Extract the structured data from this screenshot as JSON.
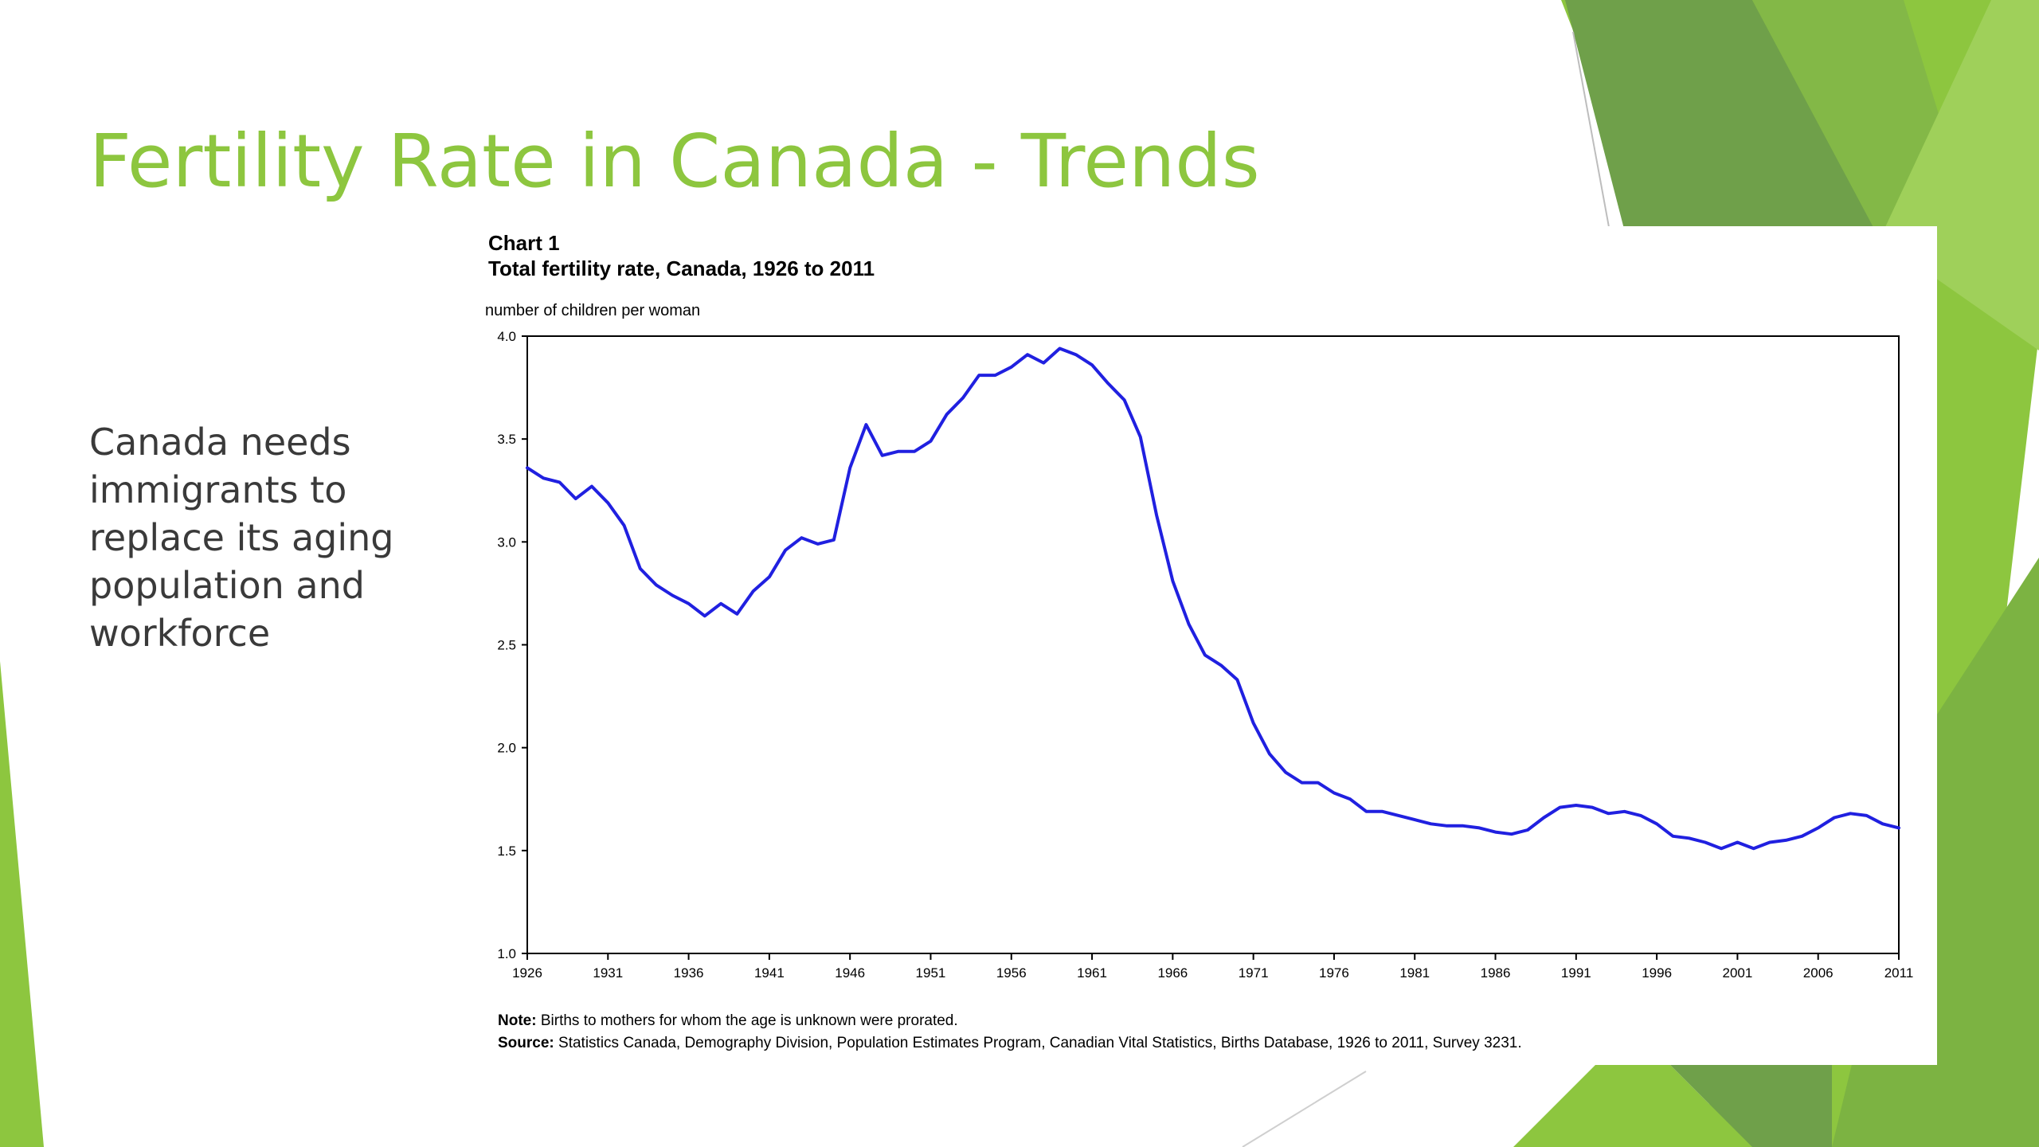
{
  "slide": {
    "title": "Fertility Rate in Canada - Trends",
    "body_lines": [
      "Canada needs",
      "immigrants to",
      "replace its aging",
      "population and",
      "workforce"
    ],
    "accent_color": "#8dc63f"
  },
  "chart_data": {
    "type": "line",
    "chart_label": "Chart 1",
    "title": "Total fertility rate, Canada, 1926 to 2011",
    "ylabel": "number of children per woman",
    "xlabel": "",
    "xlim": [
      1926,
      2011
    ],
    "ylim": [
      1.0,
      4.0
    ],
    "y_ticks": [
      "1.0",
      "1.5",
      "2.0",
      "2.5",
      "3.0",
      "3.5",
      "4.0"
    ],
    "x_ticks": [
      "1926",
      "1931",
      "1936",
      "1941",
      "1946",
      "1951",
      "1956",
      "1961",
      "1966",
      "1971",
      "1976",
      "1981",
      "1986",
      "1991",
      "1996",
      "2001",
      "2006",
      "2011"
    ],
    "grid": false,
    "line_color": "#2020e0",
    "series": [
      {
        "x": [
          1926,
          1927,
          1928,
          1929,
          1930,
          1931,
          1932,
          1933,
          1934,
          1935,
          1936,
          1937,
          1938,
          1939,
          1940,
          1941,
          1942,
          1943,
          1944,
          1945,
          1946,
          1947,
          1948,
          1949,
          1950,
          1951,
          1952,
          1953,
          1954,
          1955,
          1956,
          1957,
          1958,
          1959,
          1960,
          1961,
          1962,
          1963,
          1964,
          1965,
          1966,
          1967,
          1968,
          1969,
          1970,
          1971,
          1972,
          1973,
          1974,
          1975,
          1976,
          1977,
          1978,
          1979,
          1980,
          1981,
          1982,
          1983,
          1984,
          1985,
          1986,
          1987,
          1988,
          1989,
          1990,
          1991,
          1992,
          1993,
          1994,
          1995,
          1996,
          1997,
          1998,
          1999,
          2000,
          2001,
          2002,
          2003,
          2004,
          2005,
          2006,
          2007,
          2008,
          2009,
          2010,
          2011
        ],
        "values": [
          3.36,
          3.31,
          3.29,
          3.21,
          3.27,
          3.19,
          3.08,
          2.87,
          2.79,
          2.74,
          2.7,
          2.64,
          2.7,
          2.65,
          2.76,
          2.83,
          2.96,
          3.02,
          2.99,
          3.01,
          3.36,
          3.57,
          3.42,
          3.44,
          3.44,
          3.49,
          3.62,
          3.7,
          3.81,
          3.81,
          3.85,
          3.91,
          3.87,
          3.94,
          3.91,
          3.86,
          3.77,
          3.69,
          3.51,
          3.13,
          2.81,
          2.6,
          2.45,
          2.4,
          2.33,
          2.12,
          1.97,
          1.88,
          1.83,
          1.83,
          1.78,
          1.75,
          1.69,
          1.69,
          1.67,
          1.65,
          1.63,
          1.62,
          1.62,
          1.61,
          1.59,
          1.58,
          1.6,
          1.66,
          1.71,
          1.72,
          1.71,
          1.68,
          1.69,
          1.67,
          1.63,
          1.57,
          1.56,
          1.54,
          1.51,
          1.54,
          1.51,
          1.54,
          1.55,
          1.57,
          1.61,
          1.66,
          1.68,
          1.67,
          1.63,
          1.61
        ]
      }
    ]
  },
  "notes": {
    "note_label": "Note:",
    "note_text": "Births to mothers for whom the age is unknown were prorated.",
    "source_label": "Source:",
    "source_text": "Statistics Canada, Demography Division, Population Estimates Program, Canadian Vital Statistics, Births Database, 1926 to 2011, Survey 3231."
  }
}
